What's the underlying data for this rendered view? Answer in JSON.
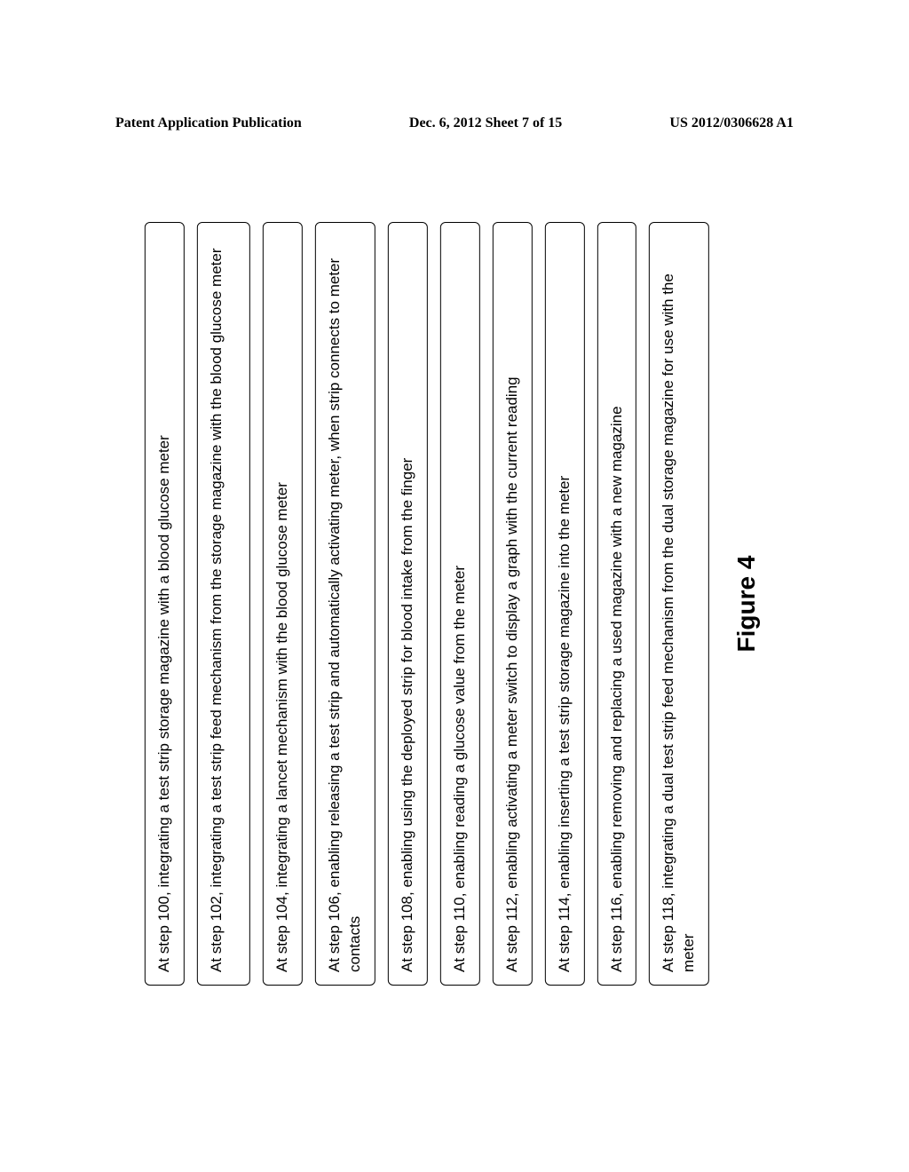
{
  "header": {
    "left": "Patent Application Publication",
    "center": "Dec. 6, 2012   Sheet 7 of 15",
    "right": "US 2012/0306628 A1"
  },
  "steps": [
    "At step 100, integrating a test strip storage magazine with a blood glucose meter",
    "At step 102, integrating a test strip feed mechanism from the storage magazine with the blood glucose meter",
    "At step 104, integrating a lancet mechanism with the blood glucose meter",
    "At step 106, enabling releasing a test strip and automatically activating meter, when strip connects to meter contacts",
    "At step 108, enabling using the deployed strip for blood intake from the finger",
    "At step 110, enabling reading a glucose value from the meter",
    "At step 112, enabling activating a meter switch to display a graph with the current reading",
    "At step 114, enabling inserting a test strip storage magazine into the meter",
    "At step 116, enabling removing and replacing a used magazine with a new magazine",
    "At step 118, integrating a dual test strip feed mechanism from the dual storage magazine for use with the meter"
  ],
  "figure_label": "Figure 4",
  "style": {
    "background_color": "#ffffff",
    "border_color": "#000000",
    "text_color": "#000000",
    "step_fontsize": 17,
    "figure_label_fontsize": 28,
    "header_fontsize": 16,
    "border_radius": 6,
    "box_gap": 14
  }
}
